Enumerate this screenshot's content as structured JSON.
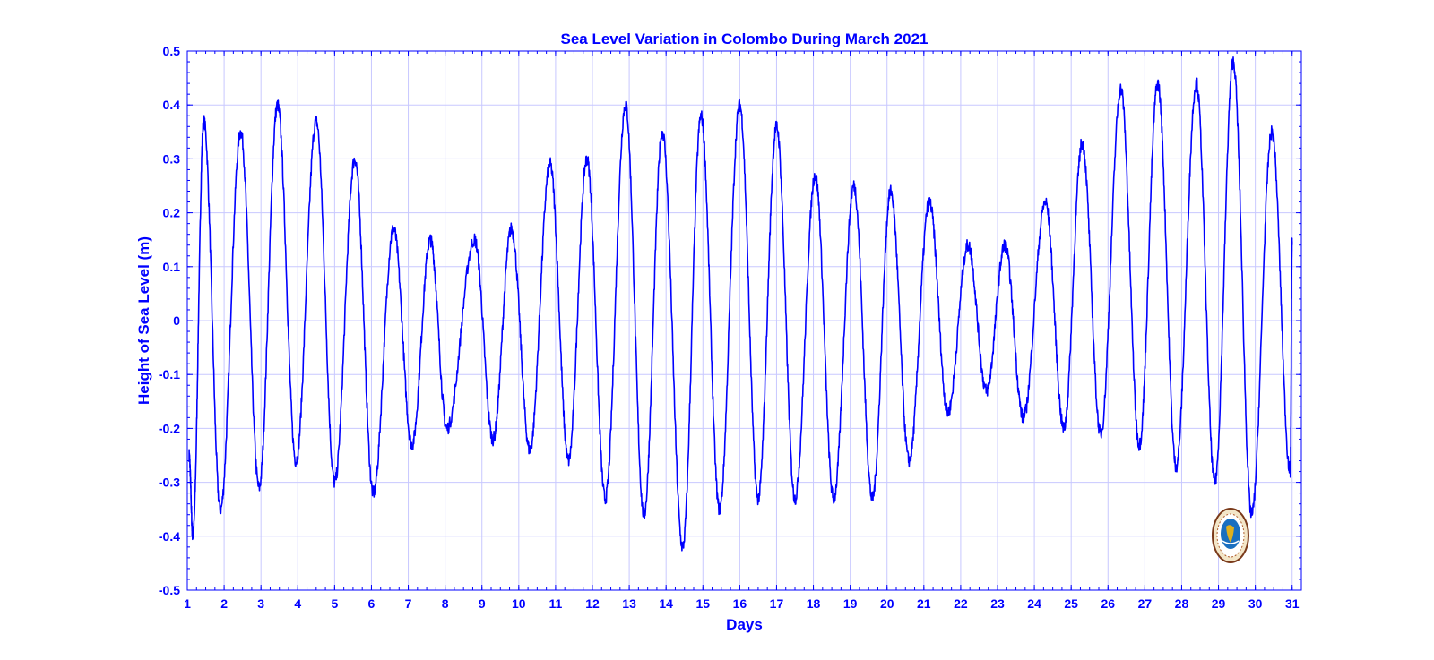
{
  "colors": {
    "axis": "#0000ff",
    "line": "#0000ff",
    "grid": "#c8c8ff",
    "background": "#ffffff"
  },
  "chart_data": {
    "type": "line",
    "title": "Sea Level Variation in Colombo During March 2021",
    "xlabel": "Days",
    "ylabel": "Height of Sea Level (m)",
    "xlim": [
      1,
      31.25
    ],
    "ylim": [
      -0.5,
      0.5
    ],
    "x_ticks": [
      1,
      2,
      3,
      4,
      5,
      6,
      7,
      8,
      9,
      10,
      11,
      12,
      13,
      14,
      15,
      16,
      17,
      18,
      19,
      20,
      21,
      22,
      23,
      24,
      25,
      26,
      27,
      28,
      29,
      30,
      31
    ],
    "x_tick_labels": [
      "1",
      "2",
      "3",
      "4",
      "5",
      "6",
      "7",
      "8",
      "9",
      "10",
      "11",
      "12",
      "13",
      "14",
      "15",
      "16",
      "17",
      "18",
      "19",
      "20",
      "21",
      "22",
      "23",
      "24",
      "25",
      "26",
      "27",
      "28",
      "29",
      "30",
      "31"
    ],
    "y_ticks": [
      -0.5,
      -0.4,
      -0.3,
      -0.2,
      -0.1,
      0,
      0.1,
      0.2,
      0.3,
      0.4,
      0.5
    ],
    "y_tick_labels": [
      "-0.5",
      "-0.4",
      "-0.3",
      "-0.2",
      "-0.1",
      "0",
      "0.1",
      "0.2",
      "0.3",
      "0.4",
      "0.5"
    ],
    "grid": true,
    "series": [
      {
        "x": [
          1.05,
          1.15,
          1.45,
          1.9,
          2.45,
          2.95,
          3.45,
          3.95,
          4.5,
          5.0,
          5.55,
          6.05,
          6.6,
          7.1,
          7.6,
          8.05,
          8.8,
          9.3,
          9.8,
          10.3,
          10.85,
          11.35,
          11.85,
          12.35,
          12.9,
          13.4,
          13.9,
          14.45,
          14.95,
          15.45,
          16.0,
          16.5,
          17.0,
          17.5,
          18.05,
          18.55,
          19.1,
          19.6,
          20.1,
          20.6,
          21.15,
          21.65,
          22.2,
          22.7,
          23.2,
          23.7,
          24.3,
          24.8,
          25.3,
          25.8,
          26.35,
          26.85,
          27.35,
          27.85,
          28.4,
          28.9,
          29.4,
          29.9,
          30.45,
          30.95,
          31.0
        ],
        "y": [
          -0.25,
          -0.4,
          0.37,
          -0.35,
          0.35,
          -0.31,
          0.4,
          -0.26,
          0.37,
          -0.3,
          0.3,
          -0.32,
          0.17,
          -0.23,
          0.15,
          -0.2,
          0.15,
          -0.22,
          0.17,
          -0.24,
          0.29,
          -0.26,
          0.3,
          -0.33,
          0.4,
          -0.36,
          0.35,
          -0.42,
          0.38,
          -0.35,
          0.4,
          -0.33,
          0.36,
          -0.33,
          0.27,
          -0.33,
          0.25,
          -0.33,
          0.24,
          -0.26,
          0.22,
          -0.17,
          0.14,
          -0.13,
          0.14,
          -0.18,
          0.22,
          -0.2,
          0.33,
          -0.21,
          0.43,
          -0.23,
          0.44,
          -0.27,
          0.44,
          -0.3,
          0.48,
          -0.36,
          0.35,
          -0.28,
          0.15
        ]
      }
    ]
  }
}
